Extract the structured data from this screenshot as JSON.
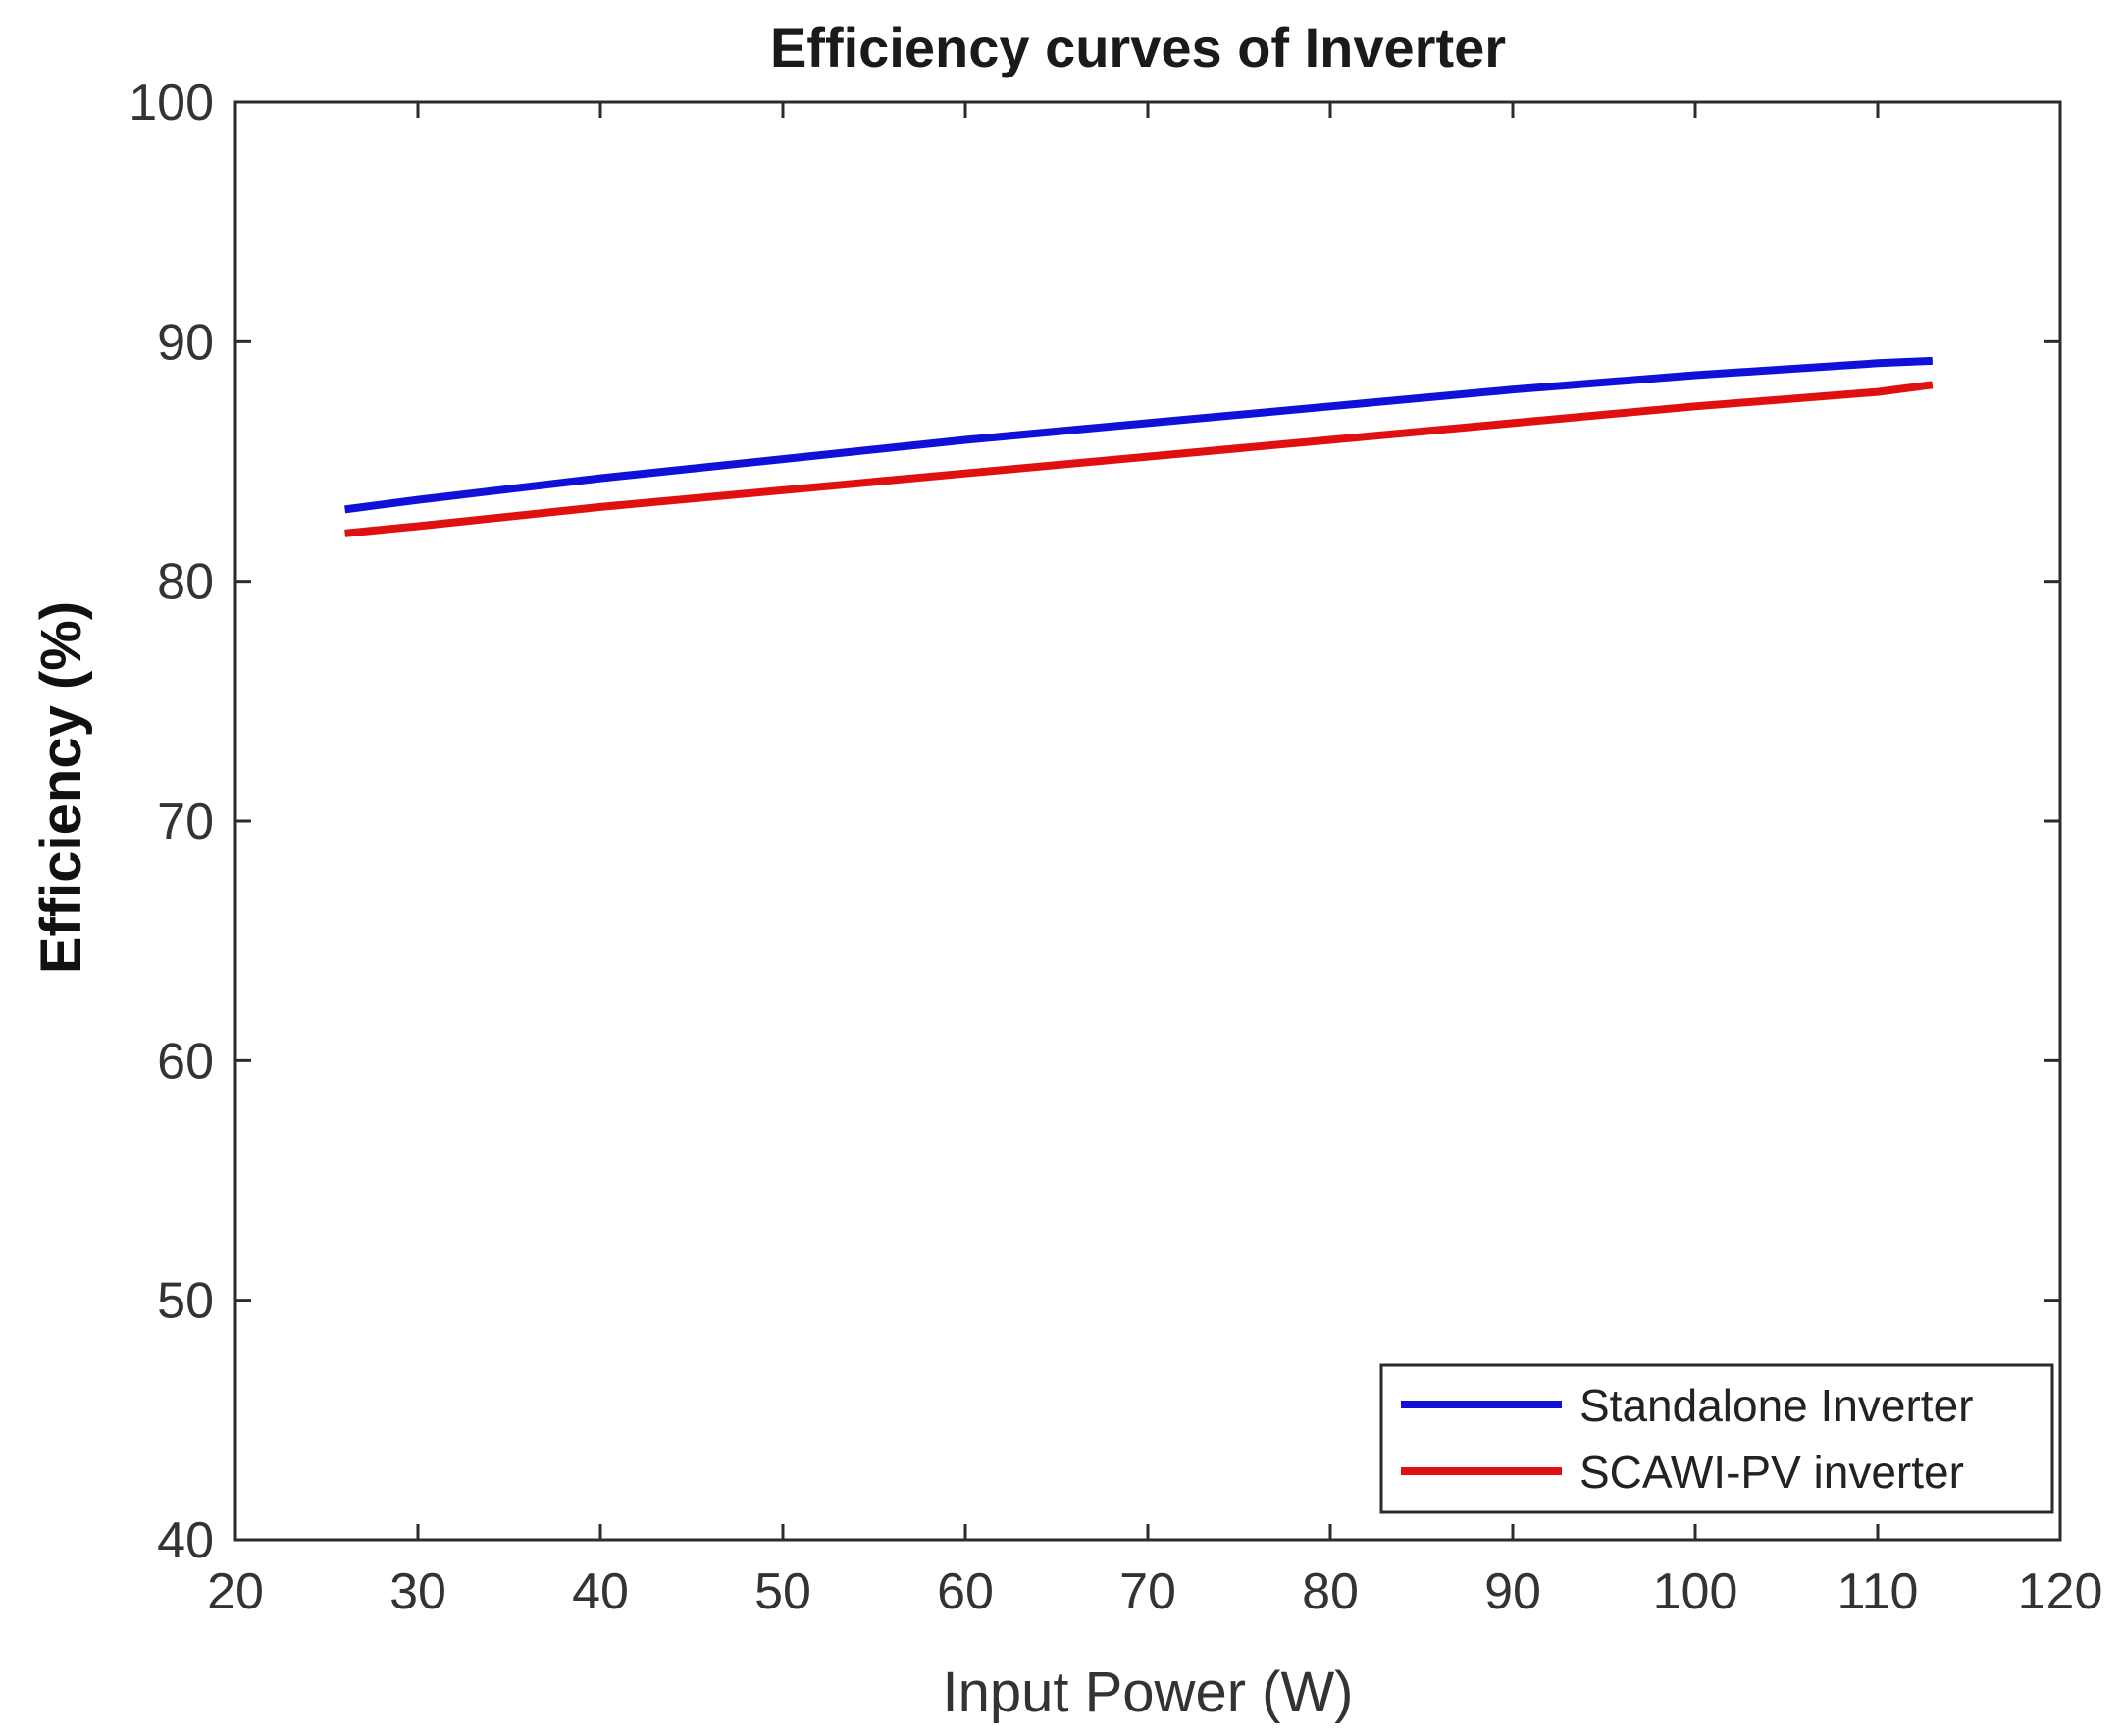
{
  "chart_data": {
    "type": "line",
    "title": "Efficiency curves of Inverter",
    "xlabel": "Input Power (W)",
    "ylabel": "Efficiency (%)",
    "xlim": [
      20,
      120
    ],
    "ylim": [
      40,
      100
    ],
    "xticks": [
      20,
      30,
      40,
      50,
      60,
      70,
      80,
      90,
      100,
      110,
      120
    ],
    "yticks": [
      40,
      50,
      60,
      70,
      80,
      90,
      100
    ],
    "grid": false,
    "legend_position": "bottom-right",
    "series": [
      {
        "name": "Standalone Inverter",
        "color": "#1010d8",
        "x": [
          26,
          30,
          40,
          50,
          60,
          70,
          80,
          90,
          100,
          110,
          113
        ],
        "y": [
          83.0,
          83.4,
          84.3,
          85.1,
          85.9,
          86.6,
          87.3,
          88.0,
          88.6,
          89.1,
          89.2
        ]
      },
      {
        "name": "SCAWI-PV inverter",
        "color": "#e01010",
        "x": [
          26,
          30,
          40,
          50,
          60,
          70,
          80,
          90,
          100,
          110,
          113
        ],
        "y": [
          82.0,
          82.3,
          83.1,
          83.8,
          84.5,
          85.2,
          85.9,
          86.6,
          87.3,
          87.9,
          88.2
        ]
      }
    ]
  }
}
